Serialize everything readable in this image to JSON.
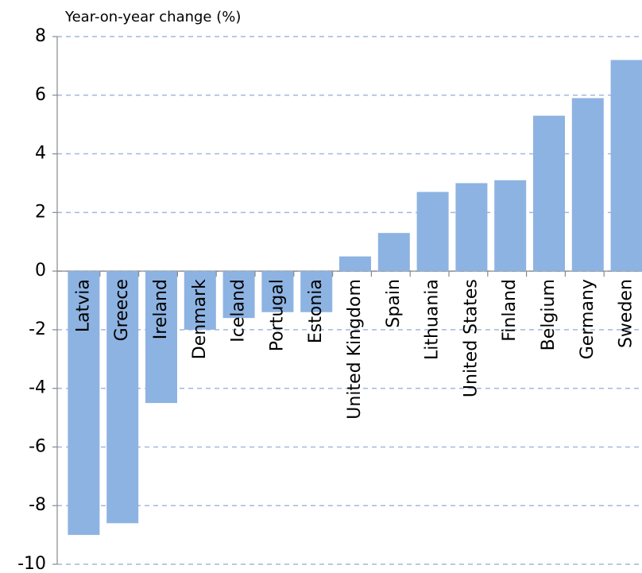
{
  "chart_data": {
    "type": "bar",
    "title": "Year-on-year change (%)",
    "categories": [
      "Latvia",
      "Greece",
      "Ireland",
      "Denmark",
      "Iceland",
      "Portugal",
      "Estonia",
      "United Kingdom",
      "Spain",
      "Lithuania",
      "United States",
      "Finland",
      "Belgium",
      "Germany",
      "Sweden"
    ],
    "values": [
      -9.0,
      -8.6,
      -4.5,
      -2.0,
      -1.6,
      -1.4,
      -1.4,
      0.5,
      1.3,
      2.7,
      3.0,
      3.1,
      5.3,
      5.9,
      7.2
    ],
    "color": "#8db3e2",
    "ylim": [
      -10,
      8
    ],
    "yticks": [
      -10,
      -8,
      -6,
      -4,
      -2,
      0,
      2,
      4,
      6,
      8
    ],
    "grid": true
  }
}
